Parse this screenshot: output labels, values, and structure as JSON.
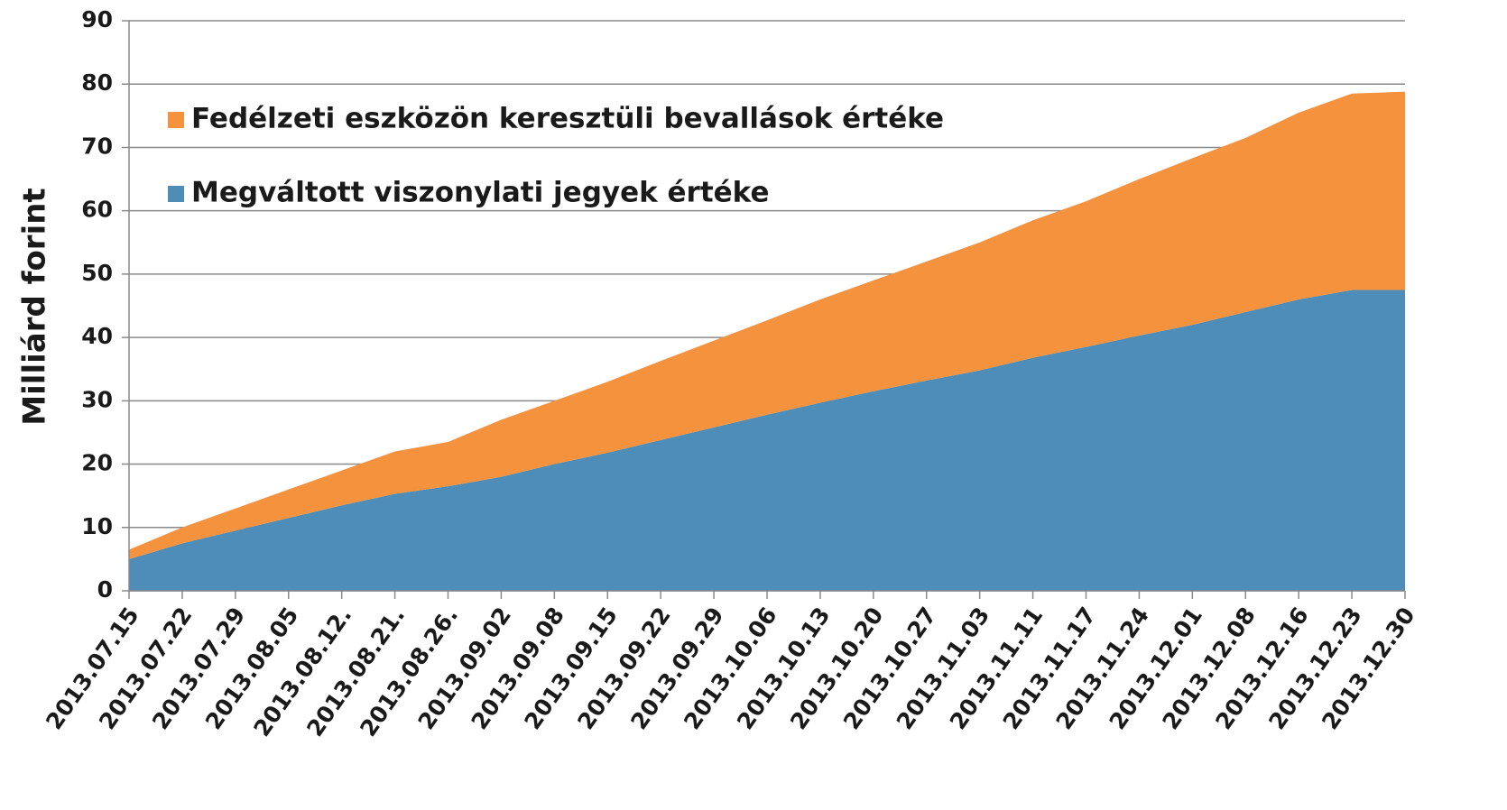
{
  "chart_data": {
    "type": "stacked_area",
    "y_label": "Milliárd forint",
    "categories": [
      "2013.07.15",
      "2013.07.22",
      "2013.07.29",
      "2013.08.05",
      "2013.08.12.",
      "2013.08.21.",
      "2013.08.26.",
      "2013.09.02",
      "2013.09.08",
      "2013.09.15",
      "2013.09.22",
      "2013.09.29",
      "2013.10.06",
      "2013.10.13",
      "2013.10.20",
      "2013.10.27",
      "2013.11.03",
      "2013.11.11",
      "2013.11.17",
      "2013.11.24",
      "2013.12.01",
      "2013.12.08",
      "2013.12.16",
      "2013.12.23",
      "2013.12.30"
    ],
    "series": [
      {
        "name": "Megváltott viszonylati jegyek értéke",
        "color": "#4d8db8",
        "values": [
          5,
          7.5,
          9.5,
          11.5,
          13.5,
          15.3,
          16.5,
          18,
          20,
          21.8,
          23.8,
          25.8,
          27.8,
          29.7,
          31.5,
          33.2,
          34.8,
          36.8,
          38.5,
          40.3,
          42,
          44,
          46,
          47.5,
          47.5
        ]
      },
      {
        "name": "Fedélzeti eszközön keresztüli bevallások értéke",
        "color": "#f5923e",
        "values": [
          1.5,
          2.5,
          3.5,
          4.5,
          5.5,
          6.7,
          7,
          9,
          10,
          11.2,
          12.5,
          13.7,
          14.9,
          16.3,
          17.5,
          18.8,
          20.2,
          21.7,
          23,
          24.7,
          26.3,
          27.5,
          29.5,
          31,
          31.3
        ]
      }
    ],
    "ylim": [
      0,
      90
    ],
    "yticks": [
      0,
      10,
      20,
      30,
      40,
      50,
      60,
      70,
      80,
      90
    ],
    "grid": true
  }
}
